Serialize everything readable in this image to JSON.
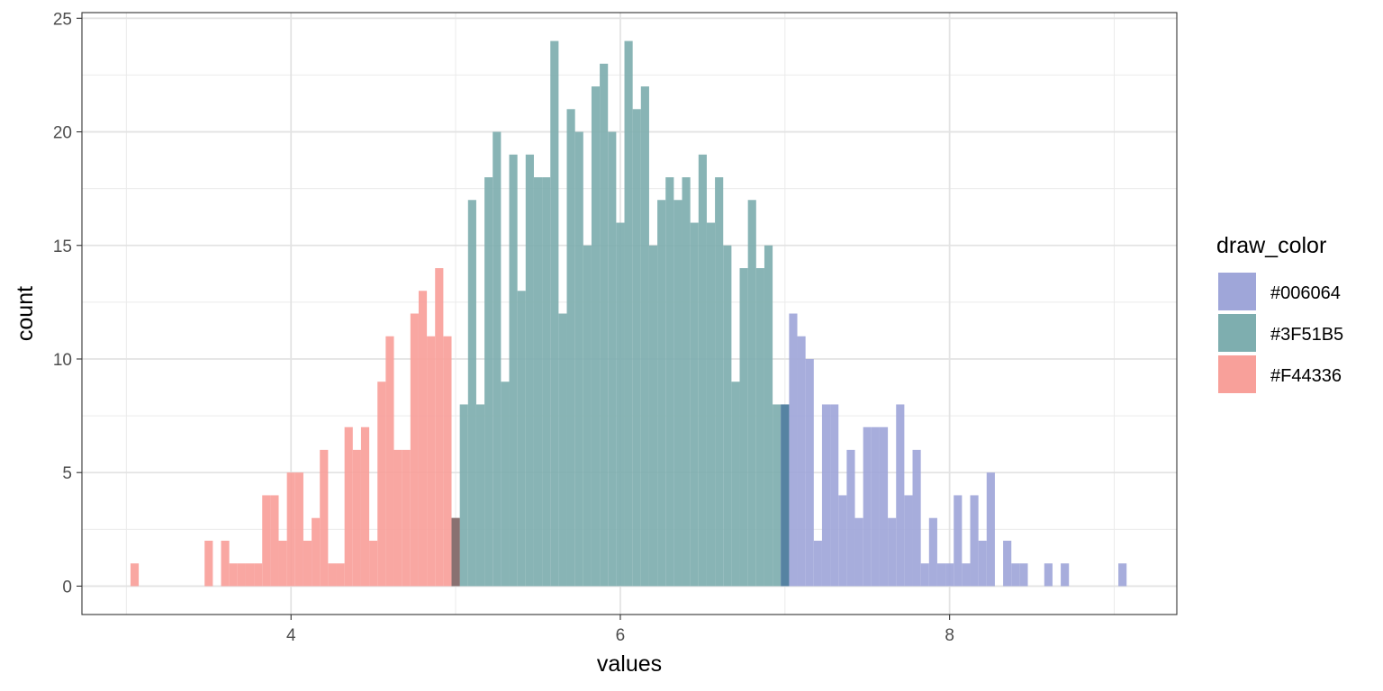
{
  "chart_data": {
    "type": "histogram",
    "xlabel": "values",
    "ylabel": "count",
    "xlim": [
      2.73,
      9.38
    ],
    "ylim": [
      -1.25,
      25.25
    ],
    "x_ticks": [
      4,
      6,
      8
    ],
    "y_ticks": [
      0,
      5,
      10,
      15,
      20,
      25
    ],
    "grid": true,
    "legend_position": "right",
    "bin_width": 0.05,
    "legend": {
      "title": "draw_color",
      "items": [
        {
          "label": "#006064",
          "color": "#9fa6d9"
        },
        {
          "label": "#3F51B5",
          "color": "#7eaeaf"
        },
        {
          "label": "#F44336",
          "color": "#f8a09a"
        }
      ]
    },
    "series": [
      {
        "name": "#F44336",
        "color": "#f8a09a",
        "bins": [
          [
            3.05,
            1
          ],
          [
            3.5,
            2
          ],
          [
            3.6,
            2
          ],
          [
            3.65,
            1
          ],
          [
            3.7,
            1
          ],
          [
            3.75,
            1
          ],
          [
            3.8,
            1
          ],
          [
            3.85,
            4
          ],
          [
            3.9,
            4
          ],
          [
            3.95,
            2
          ],
          [
            4.0,
            5
          ],
          [
            4.05,
            5
          ],
          [
            4.1,
            2
          ],
          [
            4.15,
            3
          ],
          [
            4.2,
            6
          ],
          [
            4.25,
            1
          ],
          [
            4.3,
            1
          ],
          [
            4.35,
            7
          ],
          [
            4.4,
            6
          ],
          [
            4.45,
            7
          ],
          [
            4.5,
            2
          ],
          [
            4.55,
            9
          ],
          [
            4.6,
            11
          ],
          [
            4.65,
            6
          ],
          [
            4.7,
            6
          ],
          [
            4.75,
            12
          ],
          [
            4.8,
            13
          ],
          [
            4.85,
            11
          ],
          [
            4.9,
            14
          ],
          [
            4.95,
            11
          ],
          [
            5.0,
            3
          ]
        ]
      },
      {
        "name": "#3F51B5",
        "color": "#7eaeaf",
        "bins": [
          [
            5.0,
            3
          ],
          [
            5.05,
            8
          ],
          [
            5.1,
            17
          ],
          [
            5.15,
            8
          ],
          [
            5.2,
            18
          ],
          [
            5.25,
            20
          ],
          [
            5.3,
            9
          ],
          [
            5.35,
            19
          ],
          [
            5.4,
            13
          ],
          [
            5.45,
            19
          ],
          [
            5.5,
            18
          ],
          [
            5.55,
            18
          ],
          [
            5.6,
            24
          ],
          [
            5.65,
            12
          ],
          [
            5.7,
            21
          ],
          [
            5.75,
            20
          ],
          [
            5.8,
            15
          ],
          [
            5.85,
            22
          ],
          [
            5.9,
            23
          ],
          [
            5.95,
            20
          ],
          [
            6.0,
            16
          ],
          [
            6.05,
            24
          ],
          [
            6.1,
            21
          ],
          [
            6.15,
            22
          ],
          [
            6.2,
            15
          ],
          [
            6.25,
            17
          ],
          [
            6.3,
            18
          ],
          [
            6.35,
            17
          ],
          [
            6.4,
            18
          ],
          [
            6.45,
            16
          ],
          [
            6.5,
            19
          ],
          [
            6.55,
            16
          ],
          [
            6.6,
            18
          ],
          [
            6.65,
            15
          ],
          [
            6.7,
            9
          ],
          [
            6.75,
            14
          ],
          [
            6.8,
            17
          ],
          [
            6.85,
            14
          ],
          [
            6.9,
            15
          ],
          [
            6.95,
            8
          ],
          [
            7.0,
            8
          ]
        ]
      },
      {
        "name": "#006064",
        "color": "#9fa6d9",
        "bins": [
          [
            7.0,
            8
          ],
          [
            7.05,
            12
          ],
          [
            7.1,
            11
          ],
          [
            7.15,
            10
          ],
          [
            7.2,
            2
          ],
          [
            7.25,
            8
          ],
          [
            7.3,
            8
          ],
          [
            7.35,
            4
          ],
          [
            7.4,
            6
          ],
          [
            7.45,
            3
          ],
          [
            7.5,
            7
          ],
          [
            7.55,
            7
          ],
          [
            7.6,
            7
          ],
          [
            7.65,
            3
          ],
          [
            7.7,
            8
          ],
          [
            7.75,
            4
          ],
          [
            7.8,
            6
          ],
          [
            7.85,
            1
          ],
          [
            7.9,
            3
          ],
          [
            7.95,
            1
          ],
          [
            8.0,
            1
          ],
          [
            8.05,
            4
          ],
          [
            8.1,
            1
          ],
          [
            8.15,
            4
          ],
          [
            8.2,
            2
          ],
          [
            8.25,
            5
          ],
          [
            8.3,
            0
          ],
          [
            8.35,
            2
          ],
          [
            8.4,
            1
          ],
          [
            8.45,
            1
          ],
          [
            8.6,
            1
          ],
          [
            8.7,
            1
          ],
          [
            9.05,
            1
          ]
        ]
      }
    ]
  }
}
